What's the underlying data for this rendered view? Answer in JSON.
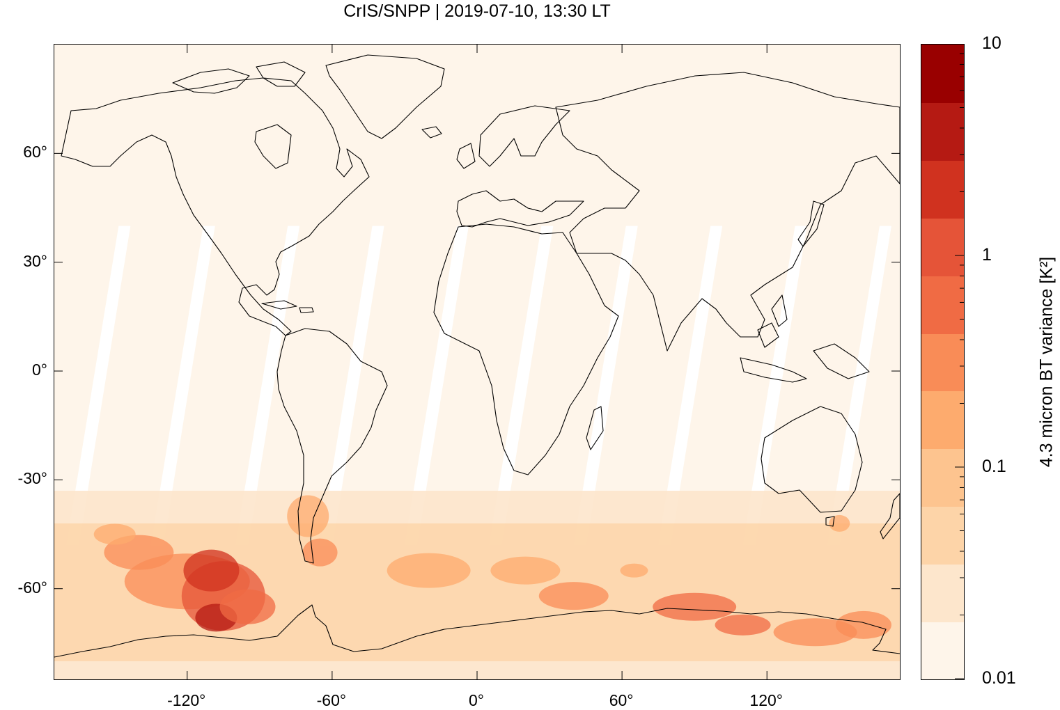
{
  "title": "CrIS/SNPP | 2019-07-10, 13:30 LT",
  "map": {
    "projection": "equirectangular",
    "lon_range": [
      -175,
      175
    ],
    "lat_range": [
      -85,
      90
    ],
    "background_color": "#fef5ea",
    "gap_color": "#ffffff",
    "coastline_color": "#000000",
    "y_ticks": [
      {
        "lat": 60,
        "label": "60°"
      },
      {
        "lat": 30,
        "label": "30°"
      },
      {
        "lat": 0,
        "label": "0°"
      },
      {
        "lat": -30,
        "label": "-30°"
      },
      {
        "lat": -60,
        "label": "-60°"
      }
    ],
    "x_ticks": [
      {
        "lon": -120,
        "label": "-120°"
      },
      {
        "lon": -60,
        "label": "-60°"
      },
      {
        "lon": 0,
        "label": "0°"
      },
      {
        "lon": 60,
        "label": "60°"
      },
      {
        "lon": 120,
        "label": "120°"
      }
    ]
  },
  "colorbar": {
    "label": "4.3 micron BT variance [K²]",
    "scale": "log",
    "range": [
      0.01,
      10
    ],
    "tick_labels": [
      {
        "value": 10,
        "label": "10"
      },
      {
        "value": 1,
        "label": "1"
      },
      {
        "value": 0.1,
        "label": "0.1"
      },
      {
        "value": 0.01,
        "label": "0.01"
      }
    ],
    "colors": [
      "#fef5ea",
      "#fde6cc",
      "#fdd4a8",
      "#fdc48f",
      "#fdab6e",
      "#f98c57",
      "#f06b44",
      "#e55438",
      "#d0321f",
      "#b51a13",
      "#990000"
    ]
  }
}
